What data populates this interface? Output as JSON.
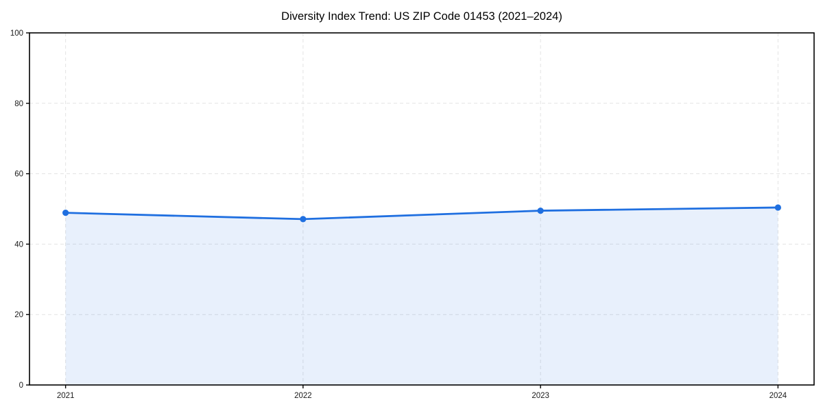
{
  "chart_data": {
    "type": "line",
    "title": "Diversity Index Trend: US ZIP Code 01453 (2021–2024)",
    "x": [
      "2021",
      "2022",
      "2023",
      "2024"
    ],
    "series": [
      {
        "name": "Diversity Index",
        "values": [
          48.9,
          47.1,
          49.5,
          50.4
        ]
      }
    ],
    "xlabel": "",
    "ylabel": "",
    "ylim": [
      0,
      100
    ],
    "yticks": [
      0,
      20,
      40,
      60,
      80,
      100
    ],
    "grid": true,
    "grid_style": "dashed",
    "legend_position": "none",
    "marker": "circle",
    "area_fill": true,
    "colors": {
      "line": "#1f6fe0",
      "area": "rgba(31,111,224,0.10)",
      "grid": "#e3e3e3",
      "axis": "#000000",
      "tick_text": "#1a1a1a"
    }
  }
}
